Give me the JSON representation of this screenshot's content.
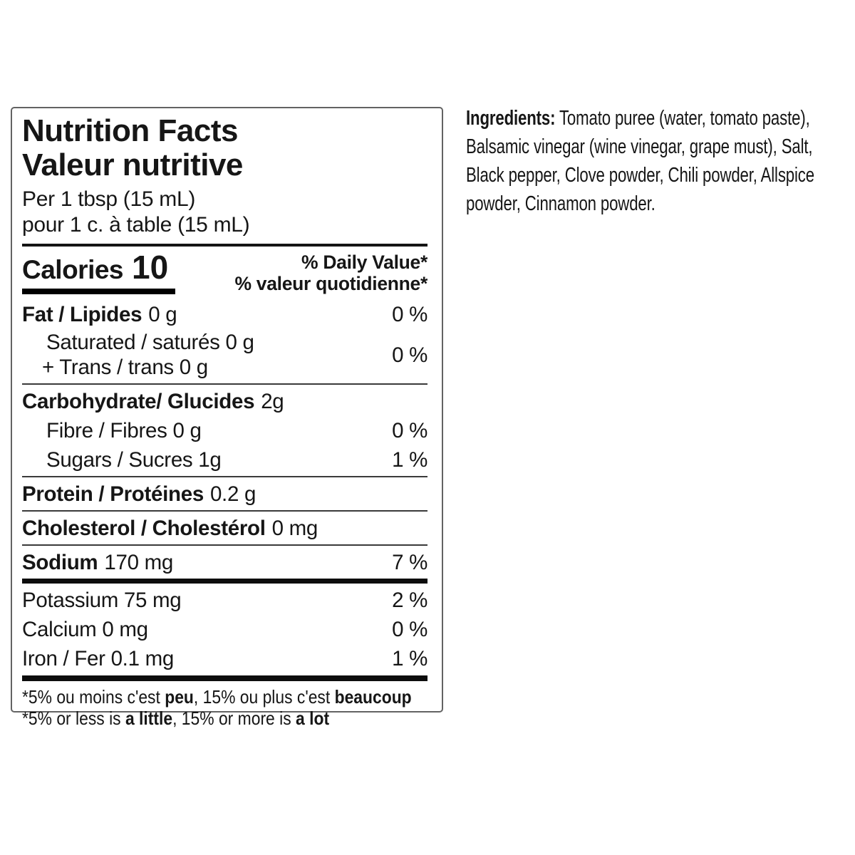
{
  "panel": {
    "title_en": "Nutrition Facts",
    "title_fr": "Valeur nutritive",
    "serving_en": "Per 1 tbsp (15 mL)",
    "serving_fr": "pour 1 c. à table (15 mL)",
    "calories_label": "Calories",
    "calories_value": "10",
    "dv_header_en": "% Daily Value*",
    "dv_header_fr": "% valeur quotidienne*",
    "rows": {
      "fat": {
        "bold": "Fat / Lipides",
        "rest": "0 g",
        "dv": "0 %"
      },
      "saturated": {
        "line1": "Saturated / saturés 0 g",
        "line2": "+ Trans / trans 0 g",
        "dv": "0 %"
      },
      "carbohydrate": {
        "bold": "Carbohydrate/ Glucides",
        "rest": "2g"
      },
      "fibre": {
        "text": "Fibre / Fibres 0 g",
        "dv": "0 %"
      },
      "sugars": {
        "text": "Sugars / Sucres 1g",
        "dv": "1 %"
      },
      "protein": {
        "bold": "Protein / Protéines",
        "rest": "0.2 g"
      },
      "cholesterol": {
        "bold": "Cholesterol / Cholestérol",
        "rest": "0 mg"
      },
      "sodium": {
        "bold": "Sodium",
        "rest": "170 mg",
        "dv": "7 %"
      },
      "potassium": {
        "text": "Potassium 75 mg",
        "dv": "2 %"
      },
      "calcium": {
        "text": "Calcium 0 mg",
        "dv": "0 %"
      },
      "iron": {
        "text": "Iron / Fer 0.1 mg",
        "dv": "1 %"
      }
    },
    "footnote_fr": [
      {
        "t": "*5% ou moins c'est "
      },
      {
        "t": "peu"
      },
      {
        "t": ", 15% ou plus c'est "
      },
      {
        "t": "beaucoup"
      }
    ],
    "footnote_en": [
      {
        "t": "*5% or less is "
      },
      {
        "t": "a little"
      },
      {
        "t": ", 15% or more is "
      },
      {
        "t": "a lot"
      }
    ]
  },
  "ingredients": {
    "label": "Ingredients:",
    "lines": [
      " Tomato puree (water, tomato paste),",
      "Balsamic vinegar (wine vinegar, grape must), Salt,",
      "Black pepper, Clove powder, Chili powder, Allspice",
      "powder, Cinnamon powder."
    ]
  },
  "colors": {
    "text": "#161616",
    "rule_black": "#0d0d0d",
    "rule_gray": "#3a3a3a",
    "panel_border": "#636363"
  }
}
